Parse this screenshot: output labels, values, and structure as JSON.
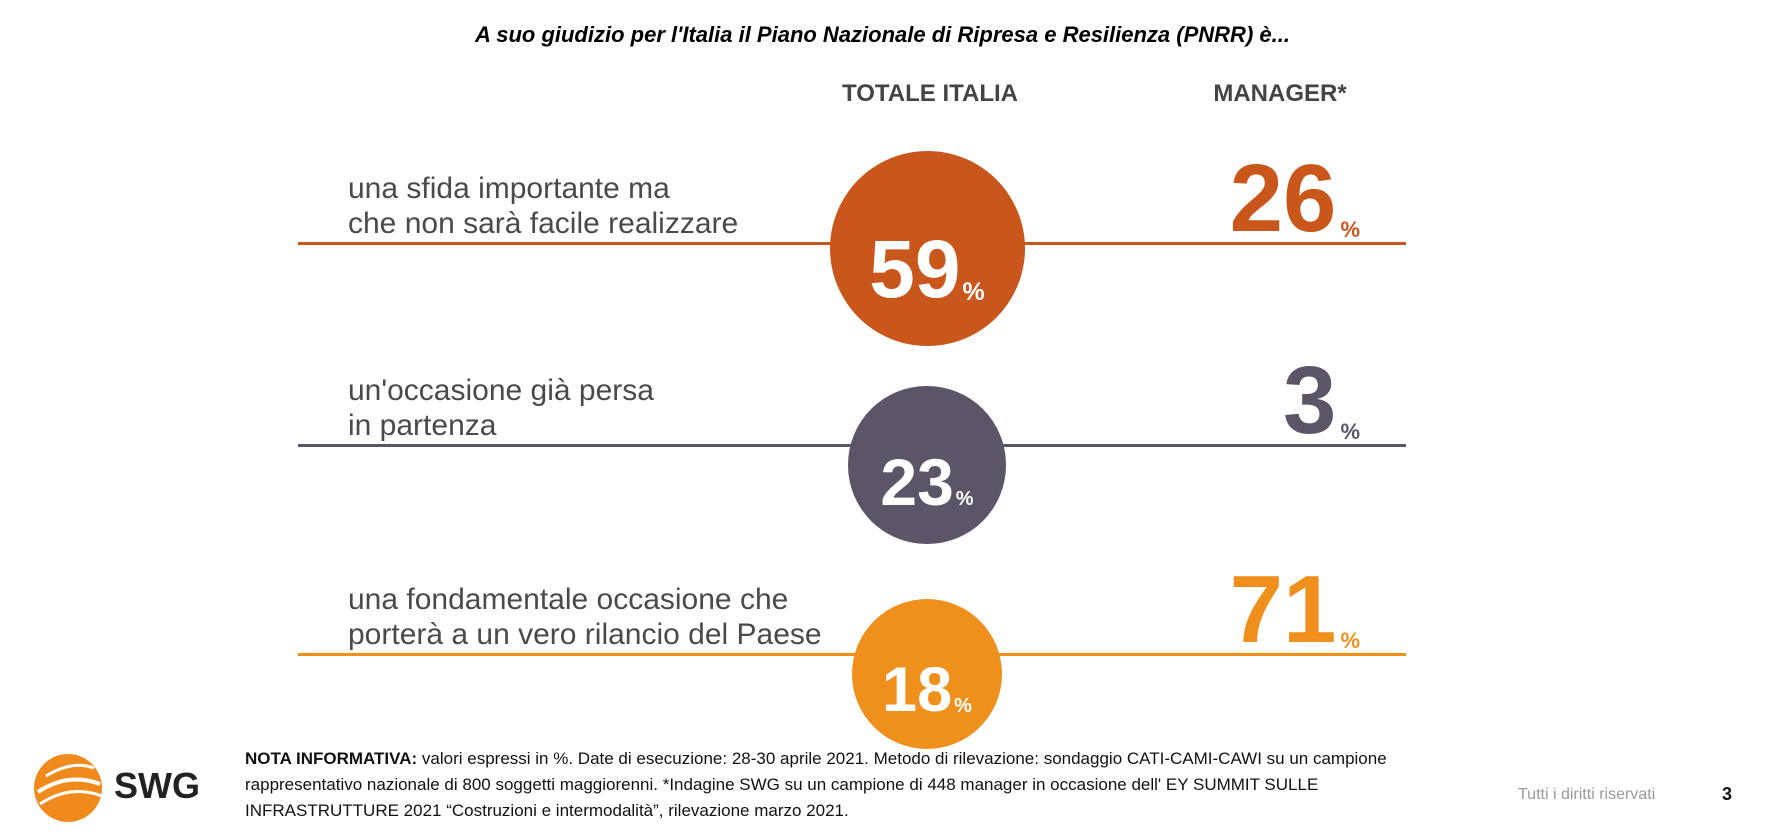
{
  "title": "A suo giudizio per l'Italia il Piano Nazionale di Ripresa e Resilienza (PNRR) è...",
  "columns": {
    "total": "TOTALE ITALIA",
    "manager": "MANAGER*"
  },
  "percent_sign": "%",
  "chart_data": {
    "type": "table",
    "title": "A suo giudizio per l'Italia il Piano Nazionale di Ripresa e Resilienza (PNRR) è...",
    "columns": [
      "TOTALE ITALIA",
      "MANAGER*"
    ],
    "rows": [
      {
        "label_lines": [
          "una sfida importante ma",
          "che non sarà facile realizzare"
        ],
        "totale": 59,
        "manager": 26,
        "color": "#c9561a"
      },
      {
        "label_lines": [
          "un'occasione già persa",
          "in partenza"
        ],
        "totale": 23,
        "manager": 3,
        "color": "#5c5568"
      },
      {
        "label_lines": [
          "una fondamentale occasione che",
          "porterà a un vero rilancio del Paese"
        ],
        "totale": 18,
        "manager": 71,
        "color": "#f0901c"
      }
    ]
  },
  "logo": {
    "text": "SWG"
  },
  "note": {
    "label": "NOTA INFORMATIVA:",
    "text": " valori espressi in %. Date di esecuzione: 28-30 aprile 2021. Metodo di rilevazione: sondaggio CATI-CAMI-CAWI su un campione rappresentativo nazionale di 800 soggetti maggiorenni. *Indagine SWG su un campione di 448 manager in occasione dell' EY SUMMIT SULLE INFRASTRUTTURE 2021 “Costruzioni e intermodalità”, rilevazione marzo 2021."
  },
  "footer": {
    "rights": "Tutti i diritti riservati",
    "page": "3"
  }
}
